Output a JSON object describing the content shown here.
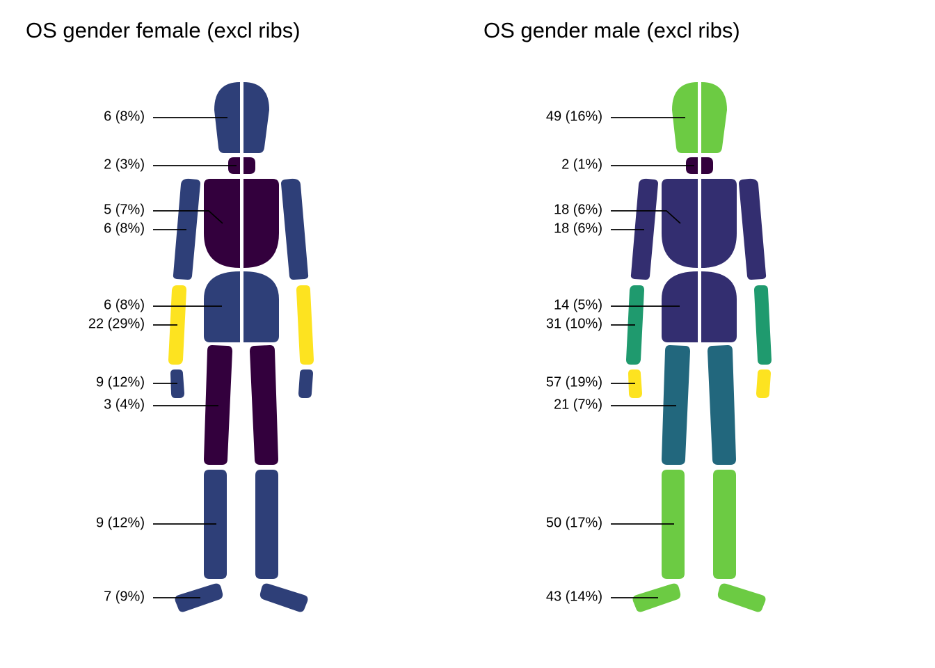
{
  "panels": [
    {
      "id": "female",
      "title": "OS gender female (excl ribs)",
      "colors": {
        "head": "#2E3F78",
        "neck": "#33003D",
        "chest": "#33003D",
        "abdomen": "#2E3F78",
        "upper_arm": "#2E3F78",
        "forearm": "#FDE320",
        "hand": "#2E3F78",
        "thigh": "#33003D",
        "lower_leg": "#2E3F78",
        "foot": "#2E3F78"
      },
      "labels": {
        "head": "6 (8%)",
        "neck": "2 (3%)",
        "chest": "5 (7%)",
        "upper_arm": "6 (8%)",
        "abdomen": "6 (8%)",
        "forearm": "22 (29%)",
        "hand": "9 (12%)",
        "thigh": "3 (4%)",
        "lower_leg": "9 (12%)",
        "foot": "7 (9%)"
      }
    },
    {
      "id": "male",
      "title": "OS gender male (excl ribs)",
      "colors": {
        "head": "#6CCB43",
        "neck": "#33003D",
        "chest": "#332E70",
        "abdomen": "#332E70",
        "upper_arm": "#332E70",
        "forearm": "#1F9A6E",
        "hand": "#FDE320",
        "thigh": "#22677D",
        "lower_leg": "#6CCB43",
        "foot": "#6CCB43"
      },
      "labels": {
        "head": "49 (16%)",
        "neck": "2 (1%)",
        "chest": "18 (6%)",
        "upper_arm": "18 (6%)",
        "abdomen": "14 (5%)",
        "forearm": "31 (10%)",
        "hand": "57 (19%)",
        "thigh": "21 (7%)",
        "lower_leg": "50 (17%)",
        "foot": "43 (14%)"
      }
    }
  ]
}
